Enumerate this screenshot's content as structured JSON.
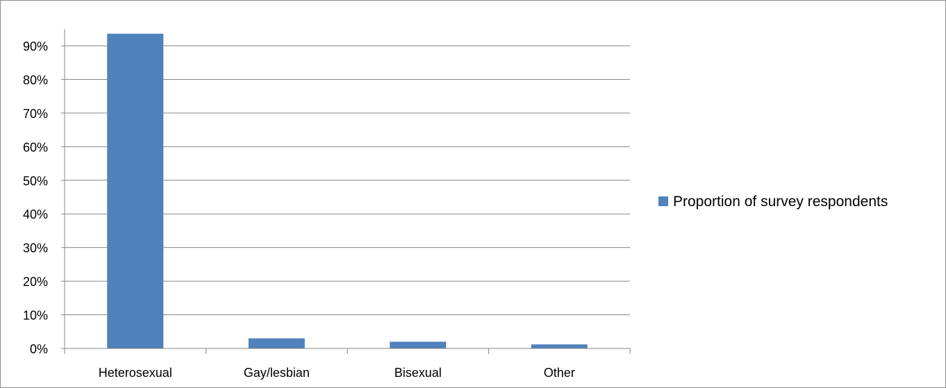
{
  "chart_data": {
    "type": "bar",
    "categories": [
      "Heterosexual",
      "Gay/lesbian",
      "Bisexual",
      "Other"
    ],
    "series": [
      {
        "name": "Proportion of survey respondents",
        "values": [
          93.6,
          3.0,
          2.0,
          1.2
        ],
        "color": "#4f81bd"
      }
    ],
    "ylim": [
      0,
      95
    ],
    "y_ticks": [
      0,
      10,
      20,
      30,
      40,
      50,
      60,
      70,
      80,
      90
    ],
    "y_tick_labels": [
      "0%",
      "10%",
      "20%",
      "30%",
      "40%",
      "50%",
      "60%",
      "70%",
      "80%",
      "90%"
    ],
    "grid": true,
    "legend": "right",
    "title": "",
    "xlabel": "",
    "ylabel": ""
  }
}
